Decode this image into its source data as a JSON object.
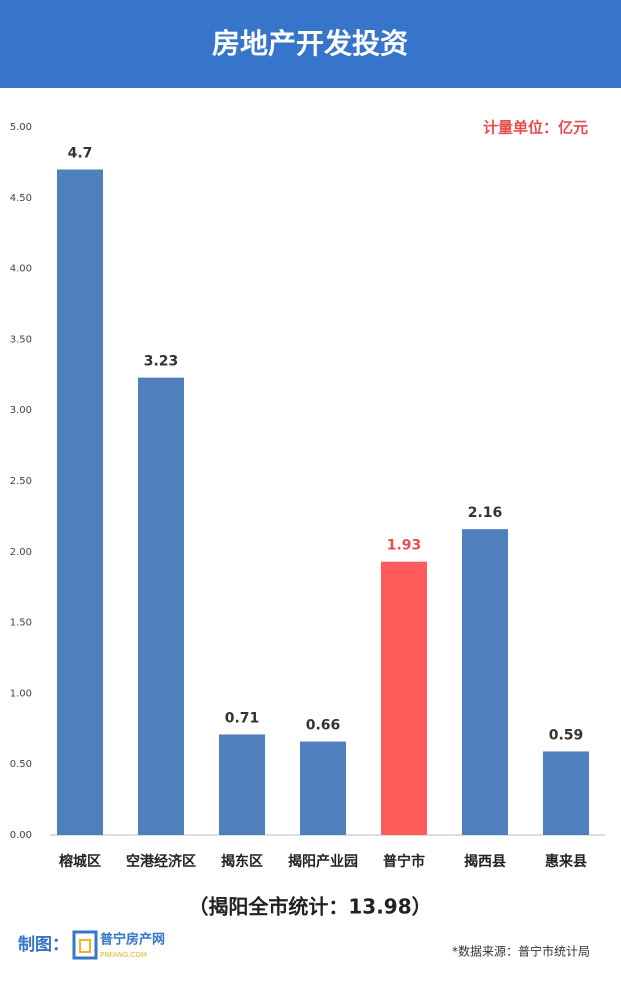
{
  "chart_data": {
    "type": "bar",
    "title": "房地产开发投资",
    "unit_note": "计量单位：亿元",
    "categories": [
      "榕城区",
      "空港经济区",
      "揭东区",
      "揭阳产业园",
      "普宁市",
      "揭西县",
      "惠来县"
    ],
    "values": [
      4.7,
      3.23,
      0.71,
      0.66,
      1.93,
      2.16,
      0.59
    ],
    "colors": [
      "#4f80bd",
      "#4f80bd",
      "#4f80bd",
      "#4f80bd",
      "#ff5a5a",
      "#4f80bd",
      "#4f80bd"
    ],
    "ylim": [
      0,
      5
    ],
    "yticks": [
      {
        "value": 0,
        "label": "0.00"
      },
      {
        "value": 0.5,
        "label": "0.50"
      },
      {
        "value": 1,
        "label": "1.00"
      },
      {
        "value": 1.5,
        "label": "1.50"
      },
      {
        "value": 2,
        "label": "2.00"
      },
      {
        "value": 2.5,
        "label": "2.50"
      },
      {
        "value": 3,
        "label": "3.00"
      },
      {
        "value": 3.5,
        "label": "3.50"
      },
      {
        "value": 4,
        "label": "4.00"
      },
      {
        "value": 4.5,
        "label": "4.50"
      },
      {
        "value": 5,
        "label": "5.00"
      }
    ],
    "grid": false,
    "total_note": "（揭阳全市统计：13.98）",
    "maker_label": "制图：",
    "logo_name": "普宁房产网",
    "logo_domain": "PNFANG.COM",
    "source": "*数据来源：普宁市统计局"
  }
}
